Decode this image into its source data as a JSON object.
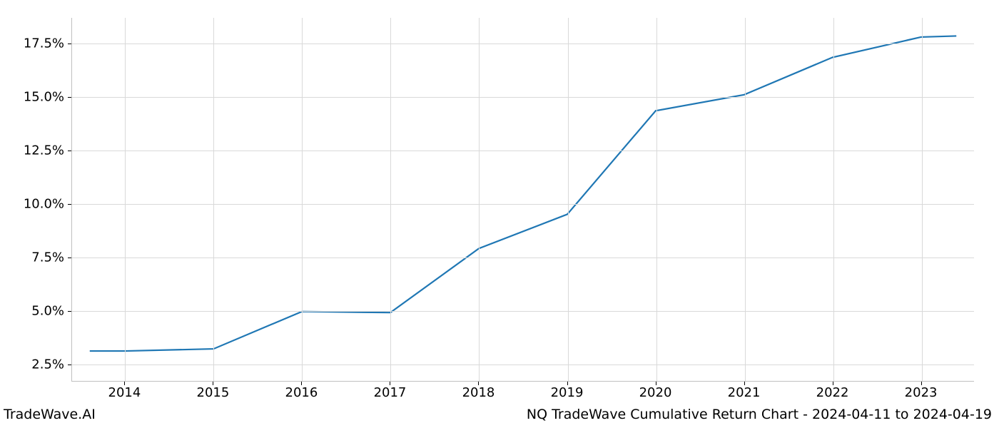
{
  "chart": {
    "type": "line",
    "x_values": [
      2013.6,
      2014,
      2015,
      2016,
      2017,
      2018,
      2019,
      2020,
      2021,
      2022,
      2023,
      2023.4
    ],
    "y_values": [
      3.1,
      3.1,
      3.2,
      4.95,
      4.9,
      7.9,
      9.5,
      14.35,
      15.1,
      16.85,
      17.8,
      17.85
    ],
    "line_color": "#1f77b4",
    "line_width": 2.2,
    "x_ticks": [
      2014,
      2015,
      2016,
      2017,
      2018,
      2019,
      2020,
      2021,
      2022,
      2023
    ],
    "x_tick_labels": [
      "2014",
      "2015",
      "2016",
      "2017",
      "2018",
      "2019",
      "2020",
      "2021",
      "2022",
      "2023"
    ],
    "y_ticks": [
      2.5,
      5.0,
      7.5,
      10.0,
      12.5,
      15.0,
      17.5
    ],
    "y_tick_labels": [
      "2.5%",
      "5.0%",
      "7.5%",
      "10.0%",
      "12.5%",
      "15.0%",
      "17.5%"
    ],
    "xlim": [
      2013.4,
      2023.6
    ],
    "ylim": [
      1.7,
      18.7
    ],
    "grid_color": "#d9d9d9",
    "background_color": "#ffffff",
    "axis_color": "#c0c0c0",
    "text_color": "#000000",
    "tick_fontsize": 18,
    "footer_fontsize": 19
  },
  "footer": {
    "left": "TradeWave.AI",
    "right": "NQ TradeWave Cumulative Return Chart - 2024-04-11 to 2024-04-19"
  }
}
